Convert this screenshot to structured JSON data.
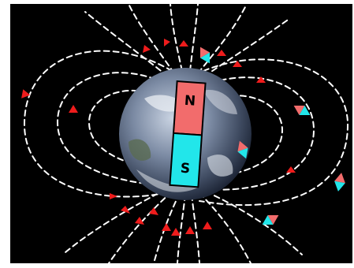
{
  "diagram": {
    "magnet": {
      "north_label": "N",
      "south_label": "S",
      "north_color": "#f26c6c",
      "south_color": "#22e6ea"
    },
    "field_line_color": "#ffffff",
    "arrow_color": "#ee1c1c",
    "background_color": "#000000",
    "earth_icon": "earth-globe-icon",
    "compass_icon": "compass-needle-icon"
  }
}
